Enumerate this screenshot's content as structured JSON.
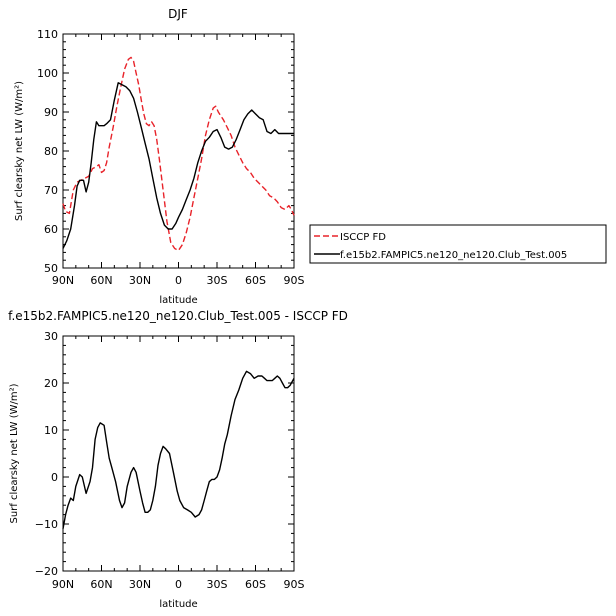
{
  "colors": {
    "isccp": "#e8232a",
    "model": "#000000"
  },
  "chart_data": [
    {
      "type": "line",
      "title": "DJF",
      "xlabel": "latitude",
      "ylabel": "Surf clearsky net LW (W/m²)",
      "xlim": [
        -90,
        90
      ],
      "ylim": [
        50,
        110
      ],
      "xticks": [
        -90,
        -60,
        -30,
        0,
        30,
        60,
        90
      ],
      "xtick_labels": [
        "90N",
        "60N",
        "30N",
        "0",
        "30S",
        "60S",
        "90S"
      ],
      "yticks": [
        50,
        60,
        70,
        80,
        90,
        100,
        110
      ],
      "ytick_labels": [
        "50",
        "60",
        "70",
        "80",
        "90",
        "100",
        "110"
      ],
      "legend": {
        "placement": "right"
      },
      "series": [
        {
          "name": "ISCCP FD",
          "style": "dashed",
          "color": "#e8232a",
          "x": [
            -90,
            -88,
            -85,
            -82,
            -79,
            -76,
            -73,
            -70,
            -67,
            -64,
            -62,
            -60,
            -58,
            -56,
            -54,
            -51,
            -48,
            -45,
            -42,
            -39,
            -37,
            -35,
            -33,
            -31,
            -29,
            -27,
            -25,
            -23,
            -21,
            -19,
            -17,
            -15,
            -12,
            -9,
            -6,
            -3,
            0,
            3,
            6,
            9,
            12,
            15,
            18,
            21,
            24,
            27,
            29,
            31,
            33,
            35,
            38,
            41,
            44,
            47,
            50,
            53,
            56,
            59,
            62,
            65,
            68,
            71,
            74,
            77,
            80,
            83,
            86,
            88,
            90
          ],
          "y": [
            66.5,
            64.5,
            64,
            70,
            72,
            72.5,
            73,
            73.5,
            75.5,
            76,
            76.5,
            74.5,
            75,
            77,
            81,
            86,
            91.5,
            96.5,
            101,
            103.5,
            104,
            103,
            100,
            97,
            93,
            89.5,
            87,
            86.5,
            87.5,
            86.5,
            83,
            78,
            70,
            62,
            56.5,
            55,
            54.5,
            56,
            59,
            63,
            68,
            73,
            78,
            84,
            88,
            91,
            91.5,
            90,
            89,
            88,
            86,
            84,
            81,
            79,
            77,
            75.5,
            74.5,
            73,
            72,
            71,
            70,
            68.5,
            68,
            67,
            65.5,
            65,
            66,
            65,
            63.5
          ]
        },
        {
          "name": "f.e15b2.FAMPIC5.ne120_ne120.Club_Test.005",
          "style": "solid",
          "color": "#000000",
          "x": [
            -90,
            -87,
            -84,
            -81,
            -79,
            -77,
            -74,
            -72,
            -70,
            -68,
            -66,
            -64,
            -62,
            -60,
            -58,
            -56,
            -53,
            -50,
            -47,
            -44,
            -41,
            -38,
            -35,
            -32,
            -29,
            -26,
            -23,
            -20,
            -17,
            -14,
            -11,
            -8,
            -5,
            -2,
            0,
            3,
            6,
            9,
            12,
            15,
            18,
            21,
            24,
            27,
            30,
            33,
            36,
            39,
            42,
            45,
            48,
            51,
            54,
            57,
            60,
            63,
            66,
            69,
            72,
            75,
            78,
            80,
            82,
            84,
            86,
            88,
            90
          ],
          "y": [
            55,
            57,
            60,
            66,
            71,
            72.5,
            72.5,
            69.5,
            72,
            77,
            83,
            87.5,
            86.5,
            86.5,
            86.5,
            87,
            88,
            93,
            97.5,
            97,
            96.5,
            95.5,
            93.5,
            90,
            86,
            82,
            78,
            73,
            68,
            64,
            61,
            60,
            60,
            61.5,
            63,
            65,
            67.5,
            70,
            73,
            77,
            80,
            82.5,
            83.5,
            85,
            85.5,
            83.5,
            81,
            80.5,
            81,
            83,
            85.5,
            88,
            89.5,
            90.5,
            89.5,
            88.5,
            88,
            85,
            84.5,
            85.5,
            84.5,
            84.5,
            84.5,
            84.5,
            84.5,
            84.5,
            84.5
          ]
        }
      ]
    },
    {
      "type": "line",
      "title": "f.e15b2.FAMPIC5.ne120_ne120.Club_Test.005 - ISCCP FD",
      "xlabel": "latitude",
      "ylabel": "Surf clearsky net LW (W/m²)",
      "xlim": [
        -90,
        90
      ],
      "ylim": [
        -20,
        30
      ],
      "xticks": [
        -90,
        -60,
        -30,
        0,
        30,
        60,
        90
      ],
      "xtick_labels": [
        "90N",
        "60N",
        "30N",
        "0",
        "30S",
        "60S",
        "90S"
      ],
      "yticks": [
        -20,
        -10,
        0,
        10,
        20,
        30
      ],
      "ytick_labels": [
        "−20",
        "−10",
        "0",
        "10",
        "20",
        "30"
      ],
      "series": [
        {
          "style": "solid",
          "color": "#000000",
          "x": [
            -90,
            -88,
            -86,
            -84,
            -82,
            -80,
            -77,
            -75,
            -72,
            -69,
            -67,
            -65,
            -63,
            -61,
            -58,
            -56,
            -54,
            -52,
            -49,
            -46,
            -44,
            -42,
            -40,
            -37,
            -35,
            -33,
            -30,
            -28,
            -26,
            -24,
            -22,
            -20,
            -18,
            -16,
            -14,
            -12,
            -10,
            -7,
            -4,
            -1,
            1,
            4,
            7,
            10,
            13,
            16,
            18,
            20,
            22,
            24,
            26,
            28,
            30,
            32,
            34,
            36,
            38,
            41,
            44,
            47,
            50,
            53,
            56,
            59,
            62,
            65,
            67,
            69,
            71,
            73,
            75,
            77,
            79,
            81,
            83,
            85,
            87,
            88,
            90
          ],
          "y": [
            -11,
            -8,
            -6,
            -4.5,
            -5,
            -2,
            0.5,
            0,
            -3.5,
            -1,
            2,
            8,
            10.5,
            11.5,
            11,
            7.5,
            4,
            2,
            -1,
            -5,
            -6.5,
            -5.5,
            -2,
            1,
            2,
            1,
            -3,
            -5.5,
            -7.5,
            -7.5,
            -7,
            -5,
            -2,
            2.5,
            5,
            6.5,
            6,
            5,
            1,
            -3,
            -5,
            -6.5,
            -7,
            -7.5,
            -8.5,
            -8,
            -7,
            -5,
            -3,
            -1,
            -0.5,
            -0.5,
            0,
            1.5,
            4,
            7,
            9,
            13,
            16.5,
            18.5,
            21,
            22.5,
            22,
            21,
            21.5,
            21.5,
            21,
            20.5,
            20.5,
            20.5,
            21,
            21.5,
            21,
            20,
            19,
            19,
            19.5,
            20,
            21
          ]
        }
      ]
    }
  ]
}
